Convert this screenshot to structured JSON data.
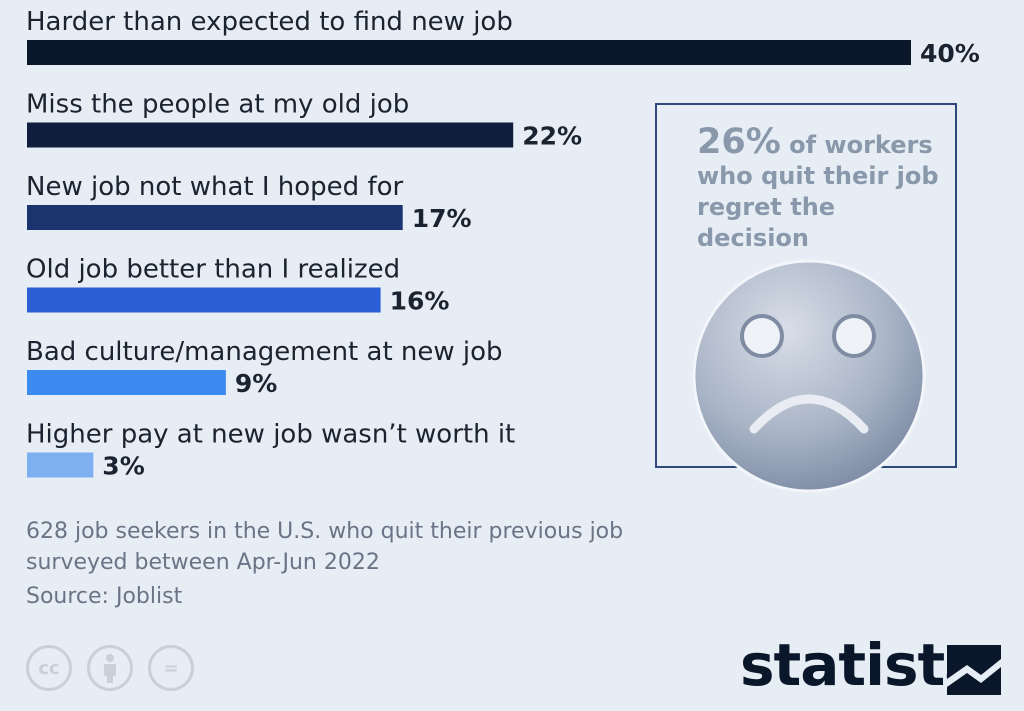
{
  "chart_data": {
    "type": "bar",
    "orientation": "horizontal",
    "categories": [
      "Harder than expected to find new job",
      "Miss the people at my old job",
      "New job not what I hoped for",
      "Old job better than I realized",
      "Bad culture/management at new job",
      "Higher pay at new job wasn’t worth it"
    ],
    "values": [
      40,
      22,
      17,
      16,
      9,
      3
    ],
    "value_labels": [
      "40%",
      "22%",
      "17%",
      "16%",
      "9%",
      "3%"
    ],
    "bar_colors": [
      "#0a1629",
      "#0f1e3d",
      "#1a3470",
      "#2c5fd6",
      "#3d8bf0",
      "#7eaff0"
    ],
    "xlim": [
      0,
      40
    ],
    "grid": false
  },
  "callout": {
    "big": "26%",
    "text1": " of workers",
    "text2": "who quit their job",
    "text3": "regret the decision",
    "icon": "sad-face-icon"
  },
  "note": {
    "line1": "628 job seekers in the U.S. who quit their previous job",
    "line2": "surveyed between Apr-Jun 2022",
    "source": "Source: Joblist"
  },
  "footer": {
    "cc_icons": [
      "cc-icon",
      "attribution-icon",
      "no-derivatives-icon"
    ],
    "cc_text": "cc",
    "nd_text": "=",
    "brand": "statista"
  },
  "colors": {
    "background": "#e6edf4",
    "text": "#1b2230",
    "muted": "#6a7486",
    "callout_text": "#8a98ab",
    "callout_border": "#2f4a7a"
  }
}
